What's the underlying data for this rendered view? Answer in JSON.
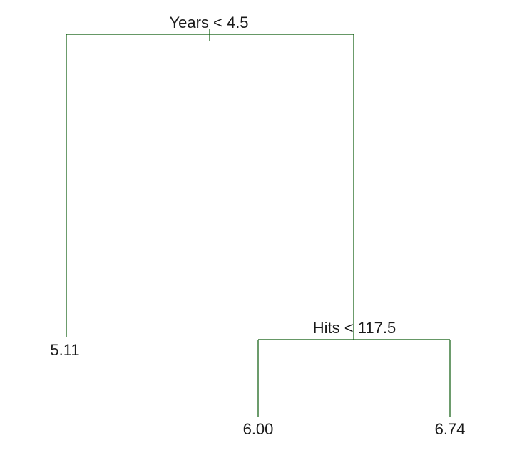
{
  "tree": {
    "nodes": [
      {
        "label": "Years < 4.5"
      },
      {
        "label": "5.11"
      },
      {
        "label": "Hits < 117.5"
      },
      {
        "label": "6.00"
      },
      {
        "label": "6.74"
      }
    ]
  }
}
